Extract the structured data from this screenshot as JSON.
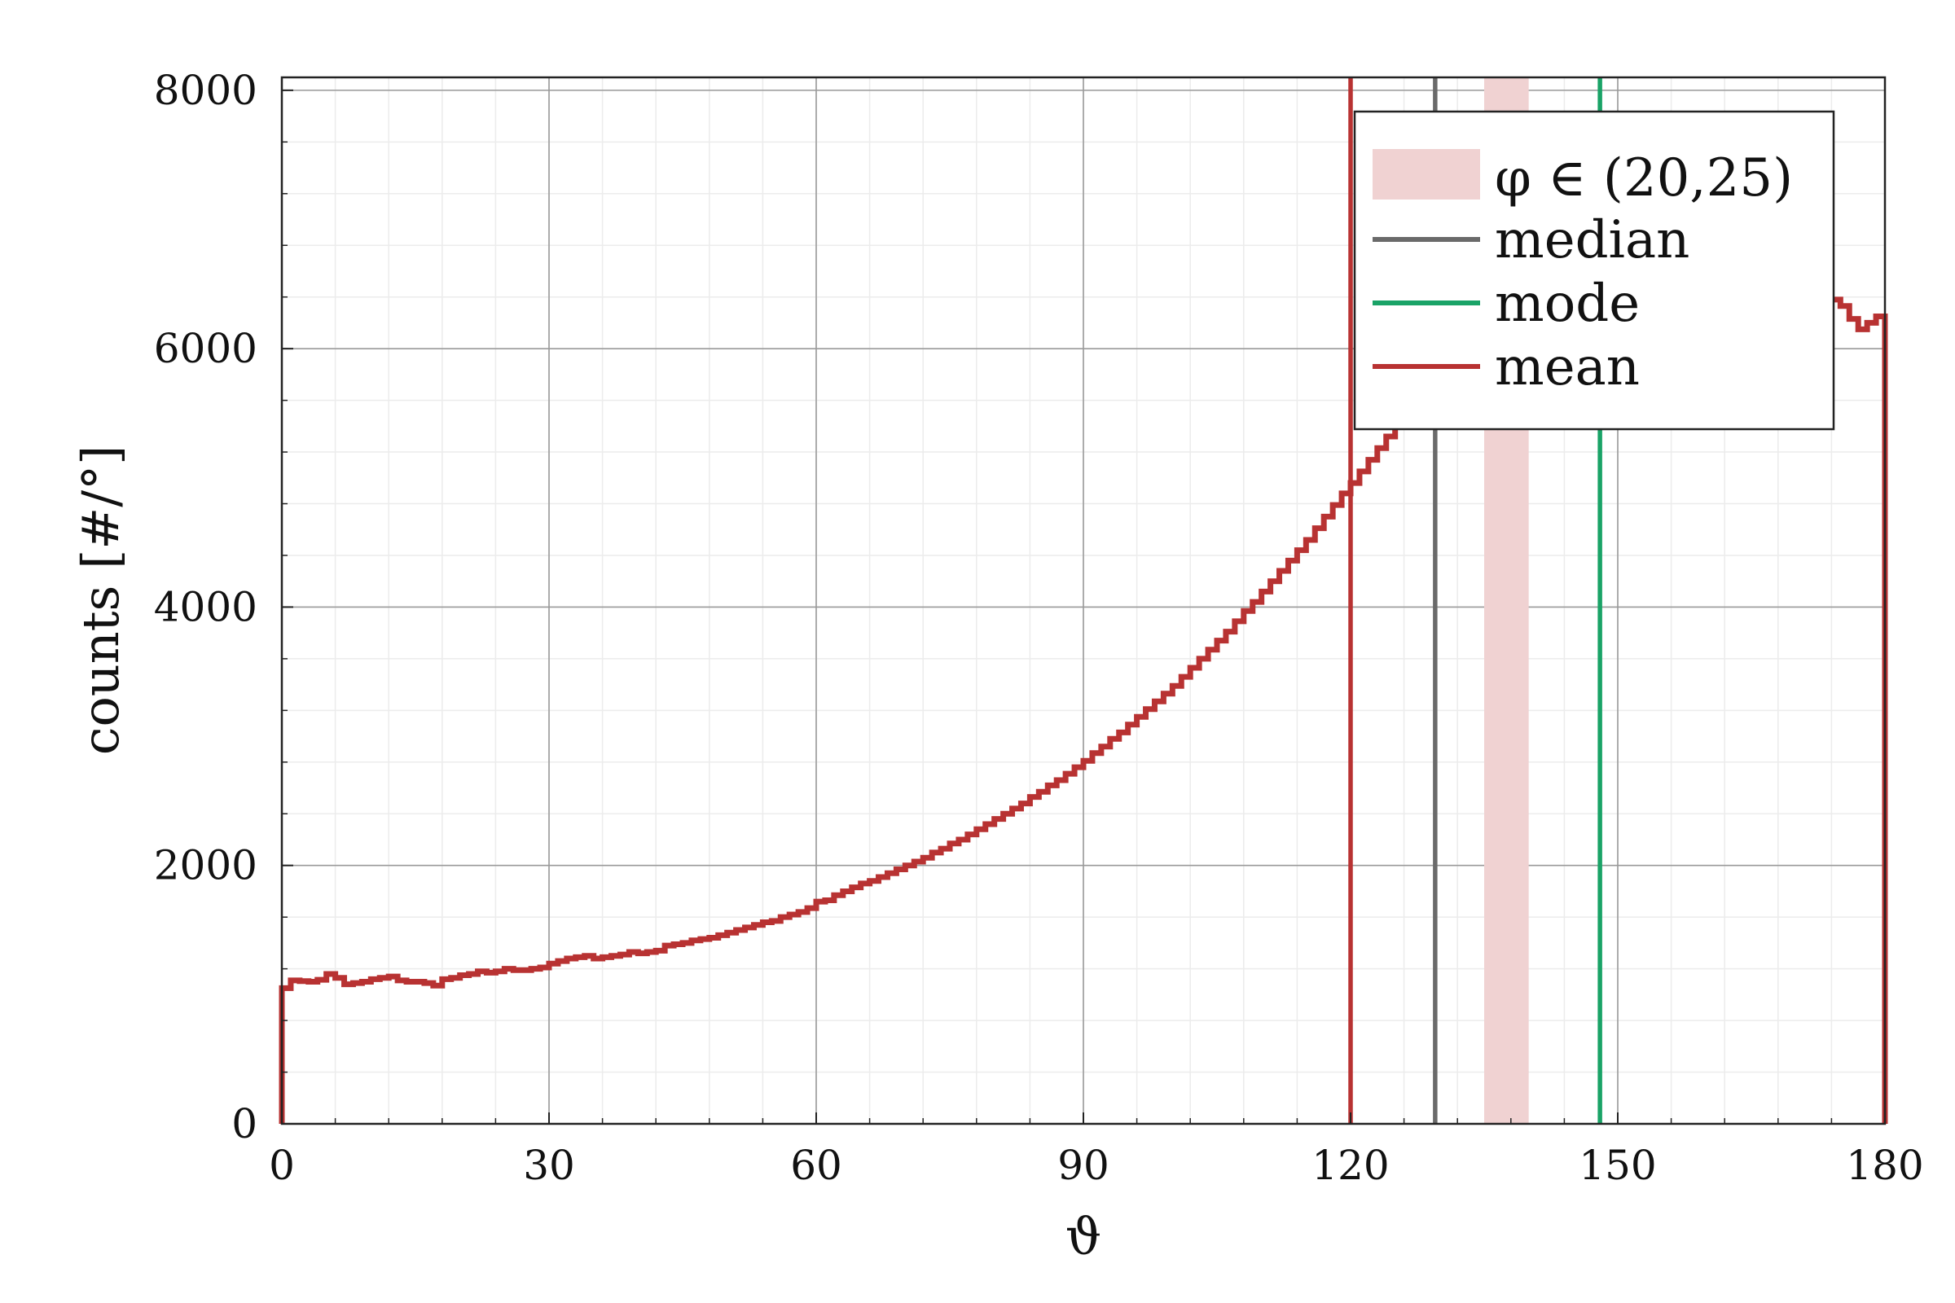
{
  "chart_data": {
    "type": "line",
    "xlabel": "ϑ",
    "ylabel": "counts [#/°]",
    "xlim": [
      0,
      180
    ],
    "ylim": [
      0,
      8100
    ],
    "x_ticks": [
      0,
      30,
      60,
      90,
      120,
      150,
      180
    ],
    "y_ticks": [
      0,
      2000,
      4000,
      6000,
      8000
    ],
    "grid": true,
    "legend_position": "top-right",
    "colors": {
      "histogram": "#b83232",
      "median": "#6a6a6a",
      "mode": "#1aa367",
      "mean": "#b83232",
      "band": "#f0d2d2"
    },
    "legend": [
      {
        "label": "φ ∈ (20,25)",
        "kind": "band"
      },
      {
        "label": "median",
        "kind": "line"
      },
      {
        "label": "mode",
        "kind": "line"
      },
      {
        "label": "mean",
        "kind": "line"
      }
    ],
    "vertical_lines": {
      "median": 129.5,
      "mode": 148,
      "mean": 120
    },
    "band": [
      135,
      140
    ],
    "histogram": {
      "bin_width": 1,
      "counts": [
        1050,
        1110,
        1105,
        1100,
        1115,
        1160,
        1130,
        1080,
        1090,
        1100,
        1120,
        1130,
        1140,
        1110,
        1100,
        1100,
        1090,
        1070,
        1120,
        1130,
        1150,
        1160,
        1180,
        1170,
        1180,
        1200,
        1190,
        1190,
        1200,
        1210,
        1240,
        1260,
        1280,
        1290,
        1300,
        1280,
        1290,
        1300,
        1310,
        1330,
        1320,
        1330,
        1340,
        1380,
        1390,
        1400,
        1420,
        1430,
        1440,
        1460,
        1480,
        1500,
        1520,
        1540,
        1560,
        1570,
        1600,
        1620,
        1640,
        1670,
        1720,
        1730,
        1770,
        1800,
        1830,
        1860,
        1880,
        1910,
        1940,
        1970,
        2000,
        2030,
        2060,
        2100,
        2130,
        2170,
        2200,
        2240,
        2280,
        2320,
        2360,
        2400,
        2440,
        2480,
        2530,
        2570,
        2620,
        2660,
        2710,
        2760,
        2810,
        2870,
        2920,
        2980,
        3030,
        3090,
        3150,
        3210,
        3270,
        3330,
        3390,
        3460,
        3530,
        3600,
        3670,
        3740,
        3810,
        3890,
        3970,
        4040,
        4120,
        4200,
        4280,
        4360,
        4440,
        4520,
        4610,
        4700,
        4790,
        4880,
        4960,
        5050,
        5140,
        5230,
        5320,
        5410,
        5500,
        5580,
        5660,
        5740,
        5820,
        5890,
        5960,
        6030,
        6100,
        6160,
        6210,
        6260,
        6300,
        6340,
        6370,
        6400,
        6420,
        6440,
        6460,
        6470,
        6480,
        6490,
        6490,
        6490,
        6480,
        6480,
        6470,
        6460,
        6450,
        6440,
        6430,
        6420,
        6410,
        6400,
        6390,
        6380,
        6370,
        6360,
        6350,
        6340,
        6330,
        6320,
        6310,
        6300,
        6290,
        6280,
        6270,
        6340,
        6380,
        6330,
        6230,
        6150,
        6200,
        6250
      ]
    }
  }
}
